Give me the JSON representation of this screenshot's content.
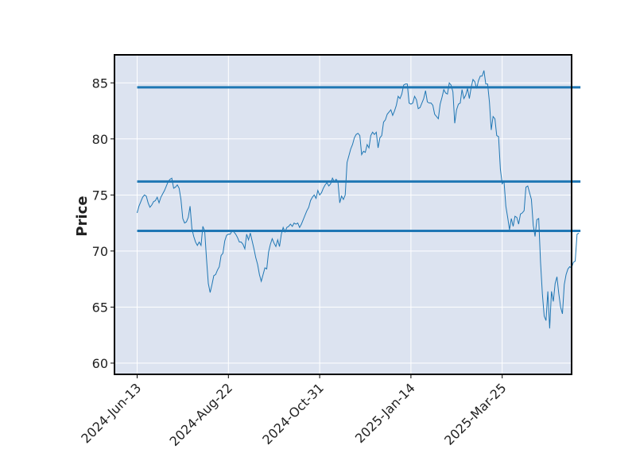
{
  "chart_data": {
    "type": "line",
    "title": "",
    "xlabel": "",
    "ylabel": "Price",
    "ylim": [
      59,
      87.5
    ],
    "x_tick_labels": [
      "2024-Jun-13",
      "2024-Aug-22",
      "2024-Oct-31",
      "2025-Jan-14",
      "2025-Mar-25"
    ],
    "x_tick_index": [
      0,
      50,
      100,
      150,
      200
    ],
    "y_ticks": [
      60,
      65,
      70,
      75,
      80,
      85
    ],
    "grid": true,
    "legend": "none",
    "colors": {
      "line": "#1f77b4",
      "plot_bg": "#dce3f0",
      "grid": "#ffffff",
      "frame": "#000000"
    },
    "horizontal_lines": [
      84.6,
      76.2,
      71.8
    ],
    "series": [
      {
        "values": [
          73.4,
          74.0,
          74.4,
          74.8,
          75.0,
          74.9,
          74.3,
          73.9,
          74.1,
          74.4,
          74.5,
          74.8,
          74.3,
          74.8,
          75.1,
          75.4,
          75.8,
          76.2,
          76.4,
          76.5,
          75.6,
          75.7,
          75.9,
          75.6,
          74.6,
          72.9,
          72.5,
          72.6,
          73.0,
          74.0,
          72.0,
          71.3,
          70.8,
          70.5,
          70.8,
          70.5,
          72.2,
          71.8,
          69.3,
          67.1,
          66.3,
          67.0,
          67.8,
          67.9,
          68.3,
          68.6,
          69.6,
          69.8,
          70.9,
          71.4,
          71.5,
          71.5,
          71.8,
          71.7,
          71.5,
          71.2,
          70.8,
          70.8,
          70.6,
          70.2,
          71.5,
          71.0,
          71.6,
          70.9,
          70.2,
          69.4,
          68.8,
          67.9,
          67.3,
          67.9,
          68.5,
          68.4,
          69.9,
          70.6,
          71.1,
          70.7,
          70.4,
          71.0,
          70.4,
          71.5,
          72.1,
          71.7,
          72.1,
          72.2,
          72.4,
          72.2,
          72.5,
          72.4,
          72.5,
          72.1,
          72.4,
          72.8,
          73.2,
          73.6,
          73.9,
          74.5,
          74.8,
          75.0,
          74.7,
          75.4,
          75.0,
          75.2,
          75.6,
          75.9,
          76.1,
          75.8,
          76.0,
          76.5,
          76.2,
          76.4,
          76.2,
          74.3,
          74.9,
          74.6,
          75.0,
          77.9,
          78.5,
          79.1,
          79.5,
          80.1,
          80.4,
          80.5,
          80.3,
          78.6,
          78.9,
          78.8,
          79.5,
          79.2,
          80.3,
          80.6,
          80.4,
          80.6,
          79.2,
          80.1,
          80.3,
          81.5,
          81.7,
          82.2,
          82.4,
          82.6,
          82.1,
          82.5,
          83.0,
          83.8,
          83.6,
          84.0,
          84.8,
          84.9,
          84.9,
          83.2,
          83.1,
          83.2,
          83.8,
          83.5,
          82.7,
          82.8,
          83.2,
          83.6,
          84.3,
          83.3,
          83.2,
          83.2,
          83.0,
          82.2,
          82.0,
          81.8,
          83.1,
          83.7,
          84.4,
          84.1,
          84.0,
          85.0,
          84.8,
          84.2,
          81.4,
          82.6,
          83.1,
          83.2,
          84.4,
          83.6,
          83.9,
          84.5,
          83.6,
          84.6,
          85.3,
          85.1,
          84.5,
          85.2,
          85.6,
          85.6,
          86.1,
          84.9,
          84.9,
          83.3,
          80.8,
          82.0,
          81.8,
          80.3,
          80.2,
          77.3,
          76.0,
          76.2,
          74.0,
          73.0,
          71.9,
          72.9,
          72.2,
          73.1,
          73.0,
          72.4,
          73.3,
          73.4,
          73.6,
          75.7,
          75.8,
          75.2,
          74.6,
          72.3,
          71.3,
          72.8,
          72.9,
          69.0,
          66.2,
          64.2,
          63.8,
          66.4,
          63.1,
          66.4,
          65.5,
          67.1,
          67.7,
          66.2,
          65.0,
          64.4,
          67.0,
          67.9,
          68.4,
          68.6,
          68.5,
          69.0,
          69.1,
          71.5,
          71.6
        ]
      }
    ]
  }
}
